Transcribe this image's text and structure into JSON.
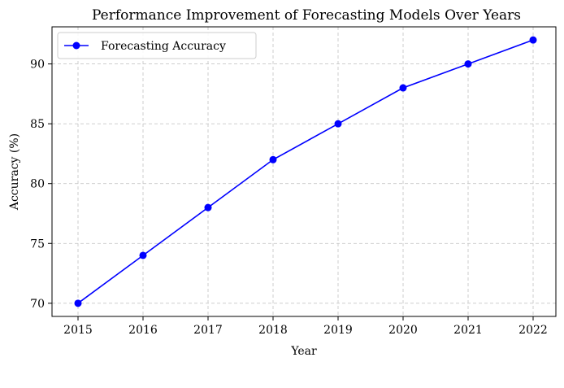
{
  "chart_data": {
    "type": "line",
    "title": "Performance Improvement of Forecasting Models Over Years",
    "xlabel": "Year",
    "ylabel": "Accuracy (%)",
    "x": [
      2015,
      2016,
      2017,
      2018,
      2019,
      2020,
      2021,
      2022
    ],
    "xlim": [
      2014.6,
      2022.35
    ],
    "ylim": [
      68.9,
      93.1
    ],
    "yticks": [
      70,
      75,
      80,
      85,
      90
    ],
    "grid": true,
    "legend_position": "top-left",
    "series": [
      {
        "name": "Forecasting Accuracy",
        "color": "#0000ff",
        "marker": "circle",
        "values": [
          70,
          74,
          78,
          82,
          85,
          88,
          90,
          92
        ]
      }
    ]
  }
}
